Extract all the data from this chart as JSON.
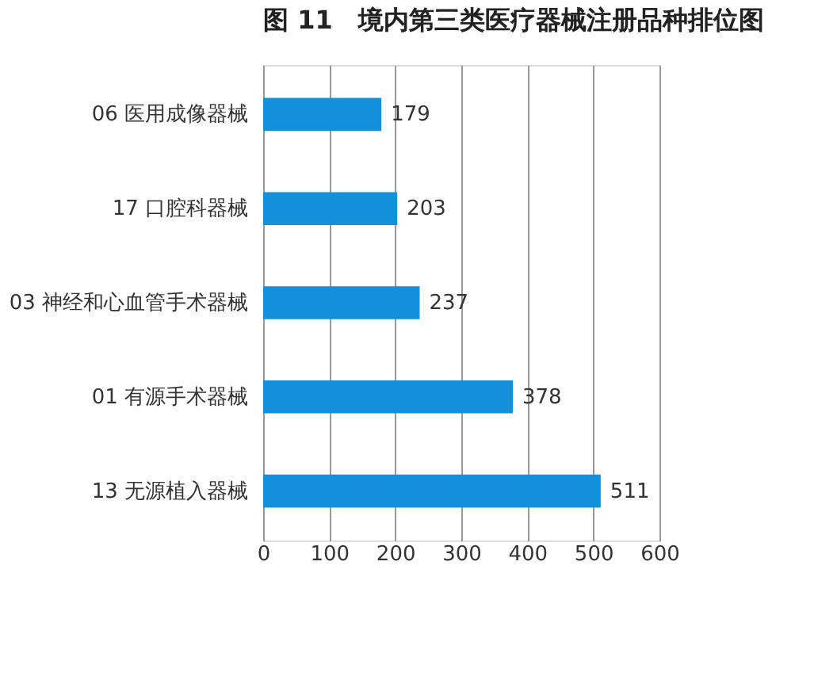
{
  "chart_data": {
    "type": "bar",
    "orientation": "horizontal",
    "title": "图 11　境内第三类医疗器械注册品种排位图",
    "categories": [
      "06 医用成像器械",
      "17 口腔科器械",
      "03 神经和心血管手术器械",
      "01 有源手术器械",
      "13 无源植入器械"
    ],
    "values": [
      179,
      203,
      237,
      378,
      511
    ],
    "color": "#1391d8",
    "xlim": [
      0,
      600
    ],
    "xticks": [
      0,
      100,
      200,
      300,
      400,
      500,
      600
    ],
    "grid": "x",
    "data_labels": true
  }
}
